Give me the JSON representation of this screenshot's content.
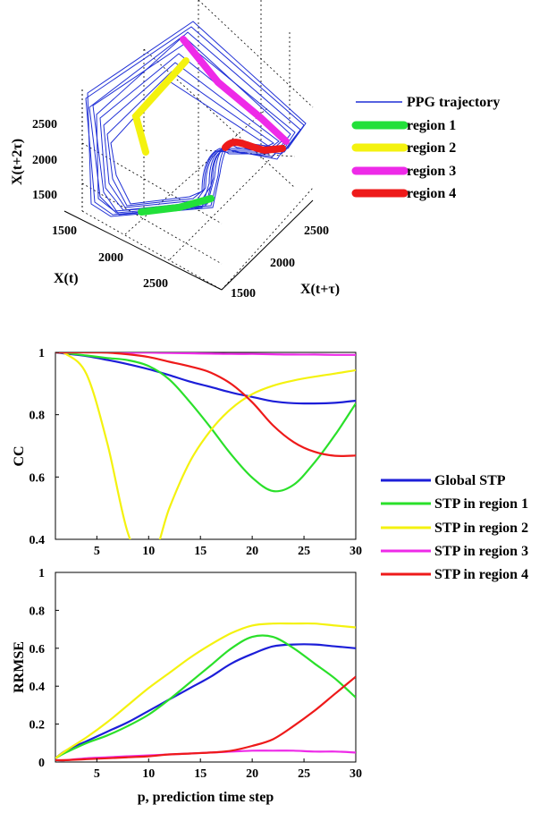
{
  "chart_data": [
    {
      "type": "line",
      "subtype": "3d-trajectory",
      "xlabel": "X(t)",
      "ylabel": "X(t+τ)",
      "zlabel": "X(t+2τ)",
      "x_ticks": [
        "1500",
        "2000",
        "2500"
      ],
      "y_ticks": [
        "1500",
        "2000",
        "2500"
      ],
      "z_ticks": [
        "1500",
        "2000",
        "2500"
      ],
      "grid": true,
      "legend_position": "right",
      "series": [
        {
          "name": "PPG trajectory",
          "color": "#1f2fd6"
        },
        {
          "name": "region 1",
          "color": "#22e03a"
        },
        {
          "name": "region 2",
          "color": "#f4f20f"
        },
        {
          "name": "region 3",
          "color": "#ee2ae8"
        },
        {
          "name": "region 4",
          "color": "#ee1a1a"
        }
      ]
    },
    {
      "type": "line",
      "ylabel": "CC",
      "xlim": [
        1,
        30
      ],
      "ylim": [
        0.4,
        1
      ],
      "x_ticks": [
        5,
        10,
        15,
        20,
        25,
        30
      ],
      "y_ticks": [
        0.4,
        0.6,
        0.8,
        1
      ],
      "x": [
        1,
        2,
        4,
        6,
        8,
        10,
        12,
        14,
        16,
        18,
        20,
        22,
        24,
        26,
        28,
        30
      ],
      "series": [
        {
          "name": "Global STP",
          "color": "#1c1ed8",
          "values": [
            1,
            0.996,
            0.988,
            0.976,
            0.962,
            0.946,
            0.927,
            0.906,
            0.889,
            0.871,
            0.857,
            0.843,
            0.837,
            0.836,
            0.838,
            0.845
          ]
        },
        {
          "name": "STP in region 1",
          "color": "#2ae02a",
          "values": [
            1,
            0.998,
            0.99,
            0.982,
            0.975,
            0.956,
            0.913,
            0.84,
            0.758,
            0.671,
            0.598,
            0.555,
            0.575,
            0.646,
            0.735,
            0.836
          ]
        },
        {
          "name": "STP in region 2",
          "color": "#f4f20f",
          "values": [
            1,
            0.995,
            0.93,
            0.71,
            0.42,
            0.31,
            0.5,
            0.65,
            0.75,
            0.82,
            0.866,
            0.893,
            0.91,
            0.922,
            0.932,
            0.943
          ]
        },
        {
          "name": "STP in region 3",
          "color": "#ee2ae8",
          "values": [
            1,
            1,
            1,
            1,
            0.999,
            0.999,
            0.998,
            0.997,
            0.996,
            0.995,
            0.995,
            0.994,
            0.993,
            0.993,
            0.992,
            0.992
          ]
        },
        {
          "name": "STP in region 4",
          "color": "#ee1a1a",
          "values": [
            1,
            1,
            1,
            0.999,
            0.994,
            0.985,
            0.97,
            0.955,
            0.935,
            0.898,
            0.84,
            0.766,
            0.712,
            0.681,
            0.668,
            0.669
          ]
        }
      ],
      "legend_position": "right"
    },
    {
      "type": "line",
      "xlabel": "p, prediction time step",
      "ylabel": "RRMSE",
      "xlim": [
        1,
        30
      ],
      "ylim": [
        0,
        1
      ],
      "x_ticks": [
        5,
        10,
        15,
        20,
        25,
        30
      ],
      "y_ticks": [
        0,
        0.2,
        0.4,
        0.6,
        0.8,
        1
      ],
      "x": [
        1,
        2,
        4,
        6,
        8,
        10,
        12,
        14,
        16,
        18,
        20,
        22,
        24,
        26,
        28,
        30
      ],
      "series": [
        {
          "name": "Global STP",
          "color": "#1c1ed8",
          "values": [
            0.02,
            0.06,
            0.11,
            0.16,
            0.21,
            0.27,
            0.33,
            0.39,
            0.45,
            0.52,
            0.57,
            0.61,
            0.62,
            0.62,
            0.61,
            0.6
          ]
        },
        {
          "name": "STP in region 1",
          "color": "#2ae02a",
          "values": [
            0.02,
            0.05,
            0.1,
            0.14,
            0.19,
            0.25,
            0.33,
            0.42,
            0.51,
            0.6,
            0.66,
            0.66,
            0.6,
            0.52,
            0.44,
            0.34
          ]
        },
        {
          "name": "STP in region 2",
          "color": "#f4f20f",
          "values": [
            0.02,
            0.06,
            0.13,
            0.21,
            0.3,
            0.39,
            0.47,
            0.55,
            0.62,
            0.68,
            0.72,
            0.73,
            0.73,
            0.73,
            0.72,
            0.71
          ]
        },
        {
          "name": "STP in region 3",
          "color": "#ee2ae8",
          "values": [
            0.01,
            0.01,
            0.02,
            0.025,
            0.03,
            0.035,
            0.04,
            0.045,
            0.05,
            0.055,
            0.06,
            0.06,
            0.06,
            0.055,
            0.055,
            0.05
          ]
        },
        {
          "name": "STP in region 4",
          "color": "#ee1a1a",
          "values": [
            0.01,
            0.01,
            0.015,
            0.02,
            0.025,
            0.03,
            0.04,
            0.045,
            0.05,
            0.06,
            0.085,
            0.12,
            0.19,
            0.27,
            0.36,
            0.45
          ]
        }
      ]
    }
  ]
}
